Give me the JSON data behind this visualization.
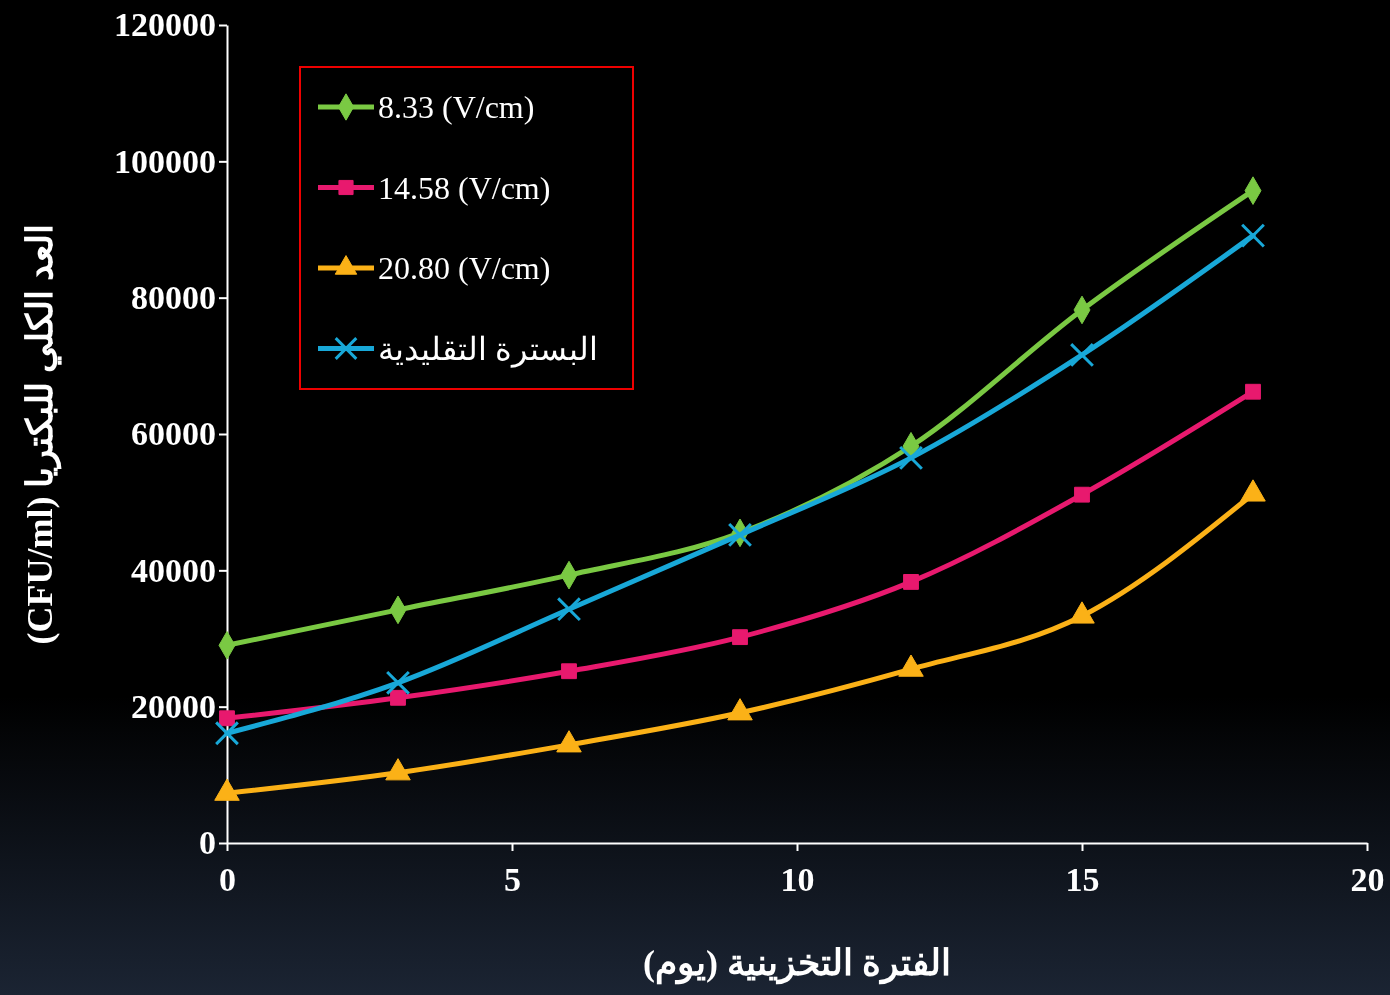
{
  "chart_data": {
    "type": "line",
    "xlabel": "الفترة التخزينية (يوم)",
    "ylabel": "العد الكلي للبكتريا (CFU/ml)",
    "x": [
      0,
      3,
      6,
      9,
      12,
      15,
      18
    ],
    "xlim": [
      0,
      20
    ],
    "xticks": [
      0,
      5,
      10,
      15,
      20
    ],
    "ylim": [
      0,
      120000
    ],
    "yticks": [
      0,
      20000,
      40000,
      60000,
      80000,
      100000,
      120000
    ],
    "grid": false,
    "legend": "top left",
    "line_style": "solid",
    "series": [
      {
        "name": "8.33 (V/cm)",
        "color": "#7ac943",
        "marker": "diamond",
        "values": [
          29000,
          34200,
          39300,
          45500,
          58200,
          78200,
          95700
        ]
      },
      {
        "name": "14.58 (V/cm)",
        "color": "#e8196e",
        "marker": "square",
        "values": [
          18300,
          21300,
          25200,
          30200,
          38300,
          51100,
          66200
        ]
      },
      {
        "name": "20.80 (V/cm)",
        "color": "#fbb117",
        "marker": "triangle",
        "values": [
          7300,
          10300,
          14400,
          19100,
          25500,
          33300,
          51200
        ]
      },
      {
        "name": "البسترة التقليدية",
        "color": "#18a8d8",
        "marker": "cross",
        "values": [
          16100,
          23500,
          34300,
          45200,
          56500,
          71600,
          89100
        ]
      }
    ]
  }
}
